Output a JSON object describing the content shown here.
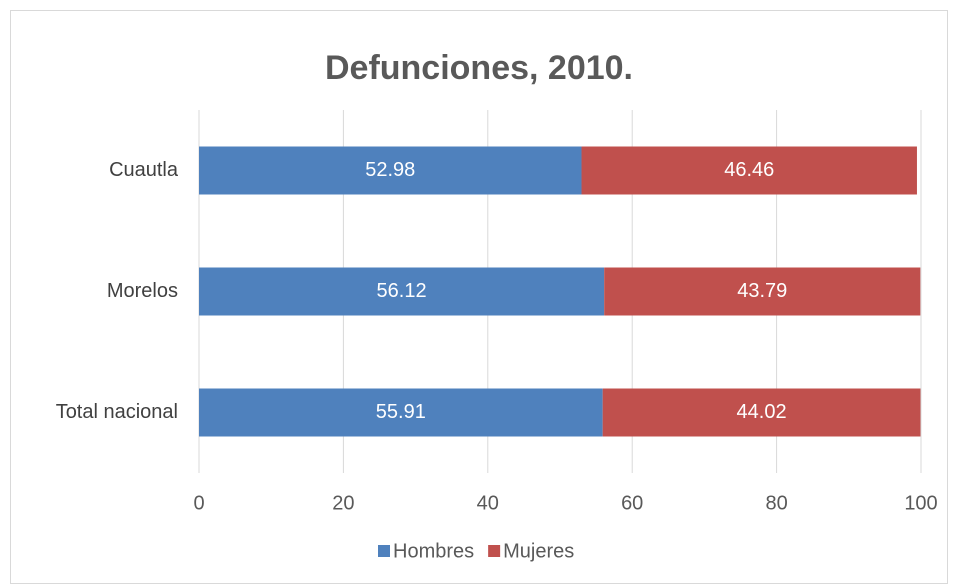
{
  "chart_data": {
    "type": "stacked-bar-horizontal",
    "title": "Defunciones, 2010.",
    "categories": [
      "Cuautla",
      "Morelos",
      "Total nacional"
    ],
    "series": [
      {
        "name": "Hombres",
        "color": "#4f81bd",
        "values": [
          52.98,
          56.12,
          55.91
        ]
      },
      {
        "name": "Mujeres",
        "color": "#c0504d",
        "values": [
          46.46,
          43.79,
          44.02
        ]
      }
    ],
    "xlim": [
      0,
      100
    ],
    "xticks": [
      0,
      20,
      40,
      60,
      80,
      100
    ],
    "grid": true,
    "legend": "bottom"
  }
}
